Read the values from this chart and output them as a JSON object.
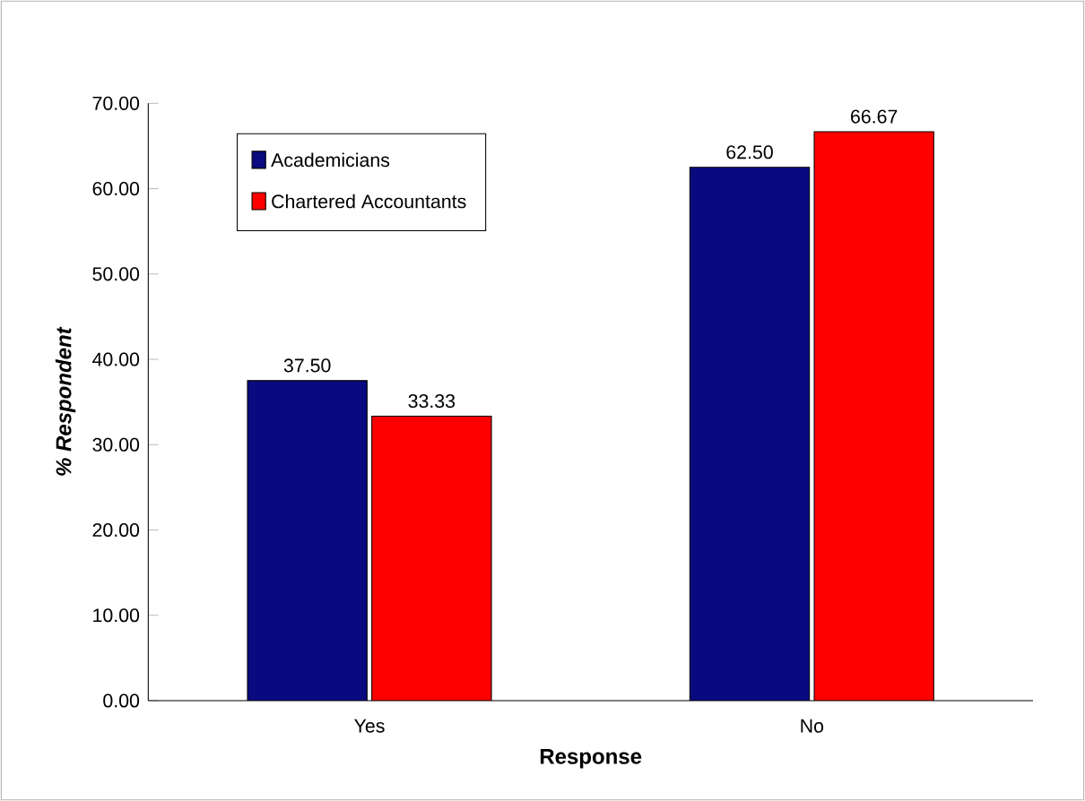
{
  "chart_data": {
    "type": "bar",
    "xlabel": "Response",
    "ylabel": "% Respondent",
    "categories": [
      "Yes",
      "No"
    ],
    "series": [
      {
        "name": "Academicians",
        "color": "#0a0a80",
        "values": [
          37.5,
          62.5
        ],
        "value_labels": [
          "37.50",
          "62.50"
        ]
      },
      {
        "name": "Chartered Accountants",
        "color": "#ff0000",
        "values": [
          33.33,
          66.67
        ],
        "value_labels": [
          "33.33",
          "66.67"
        ]
      }
    ],
    "ylim": [
      0,
      70
    ],
    "yticks": [
      {
        "value": 0,
        "label": "0.00"
      },
      {
        "value": 10,
        "label": "10.00"
      },
      {
        "value": 20,
        "label": "20.00"
      },
      {
        "value": 30,
        "label": "30.00"
      },
      {
        "value": 40,
        "label": "40.00"
      },
      {
        "value": 50,
        "label": "50.00"
      },
      {
        "value": 60,
        "label": "60.00"
      },
      {
        "value": 70,
        "label": "70.00"
      }
    ],
    "legend": "top left",
    "grid": false
  }
}
